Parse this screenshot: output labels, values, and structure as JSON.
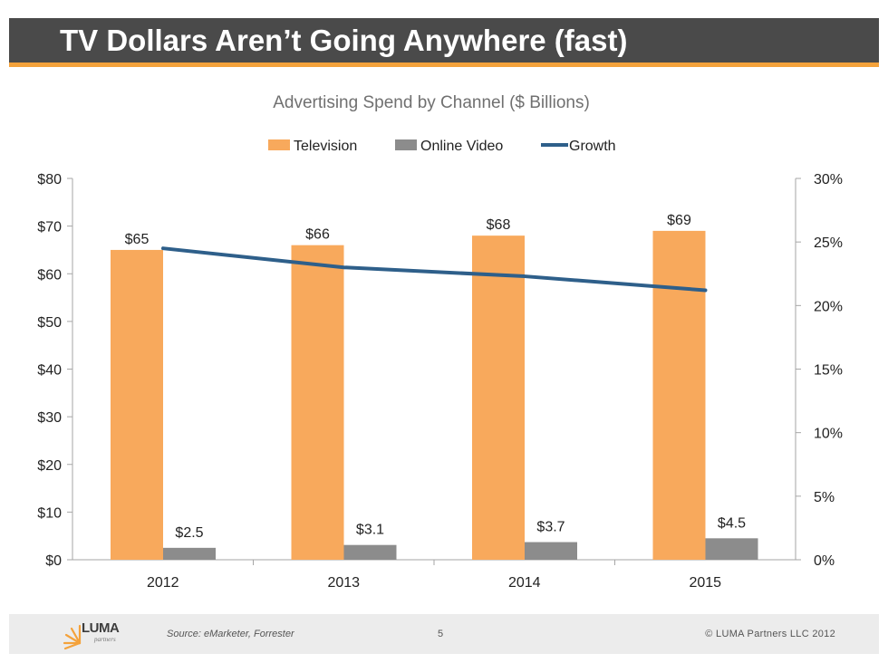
{
  "slide": {
    "title": "TV Dollars Aren’t Going Anywhere (fast)"
  },
  "footer": {
    "logo_text": "LUMA",
    "logo_sub": "partners",
    "source": "Source: eMarketer, Forrester",
    "page_number": "5",
    "copyright": "© LUMA Partners LLC 2012"
  },
  "colors": {
    "title_bar": "#4a4a4a",
    "accent": "#f4a23b",
    "television": "#f8a95c",
    "online_video": "#8c8c8c",
    "growth": "#2e5f8a"
  },
  "chart_data": {
    "type": "bar",
    "title": "Advertising Spend by Channel ($ Billions)",
    "categories": [
      "2012",
      "2013",
      "2014",
      "2015"
    ],
    "series": [
      {
        "name": "Television",
        "type": "bar",
        "axis": "left",
        "values": [
          65,
          66,
          68,
          69
        ],
        "labels": [
          "$65",
          "$66",
          "$68",
          "$69"
        ]
      },
      {
        "name": "Online Video",
        "type": "bar",
        "axis": "left",
        "values": [
          2.5,
          3.1,
          3.7,
          4.5
        ],
        "labels": [
          "$2.5",
          "$3.1",
          "$3.7",
          "$4.5"
        ]
      },
      {
        "name": "Growth",
        "type": "line",
        "axis": "right",
        "values": [
          24.5,
          23.0,
          22.3,
          21.2
        ]
      }
    ],
    "ylim": [
      0,
      80
    ],
    "y2lim": [
      0,
      30
    ],
    "yticks": [
      "$0",
      "$10",
      "$20",
      "$30",
      "$40",
      "$50",
      "$60",
      "$70",
      "$80"
    ],
    "y2ticks": [
      "0%",
      "5%",
      "10%",
      "15%",
      "20%",
      "25%",
      "30%"
    ],
    "legend_position": "top",
    "grid": false
  }
}
